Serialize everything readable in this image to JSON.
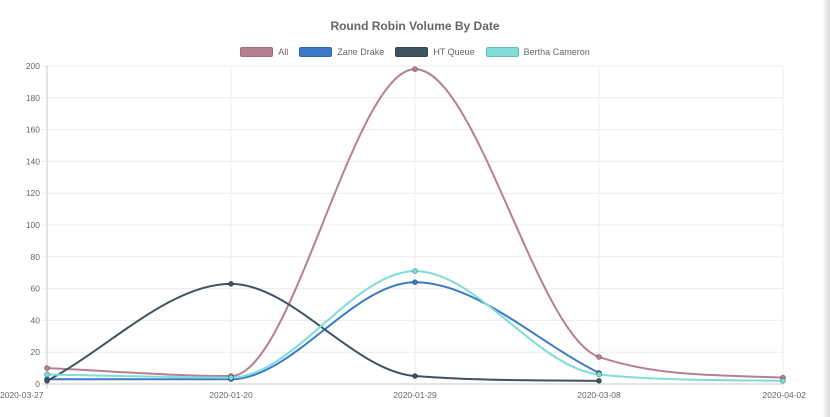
{
  "chart_data": {
    "type": "line",
    "title": "Round Robin Volume By Date",
    "xlabel": "",
    "ylabel": "",
    "categories": [
      "2020-03-27",
      "2020-01-20",
      "2020-01-29",
      "2020-03-08",
      "2020-04-02"
    ],
    "ylim": [
      0,
      200
    ],
    "yticks": [
      0,
      20,
      40,
      60,
      80,
      100,
      120,
      140,
      160,
      180,
      200
    ],
    "grid": true,
    "legend_position": "top",
    "series": [
      {
        "name": "All",
        "color": "#b5808f",
        "values": [
          10,
          5,
          198,
          17,
          4
        ]
      },
      {
        "name": "Zane Drake",
        "color": "#3b7ac9",
        "values": [
          3,
          3,
          64,
          7,
          null
        ]
      },
      {
        "name": "HT Queue",
        "color": "#3f5360",
        "values": [
          2,
          63,
          5,
          2,
          null
        ]
      },
      {
        "name": "Bertha Cameron",
        "color": "#7fdcd6",
        "values": [
          6,
          4,
          71,
          6,
          2
        ]
      }
    ]
  }
}
